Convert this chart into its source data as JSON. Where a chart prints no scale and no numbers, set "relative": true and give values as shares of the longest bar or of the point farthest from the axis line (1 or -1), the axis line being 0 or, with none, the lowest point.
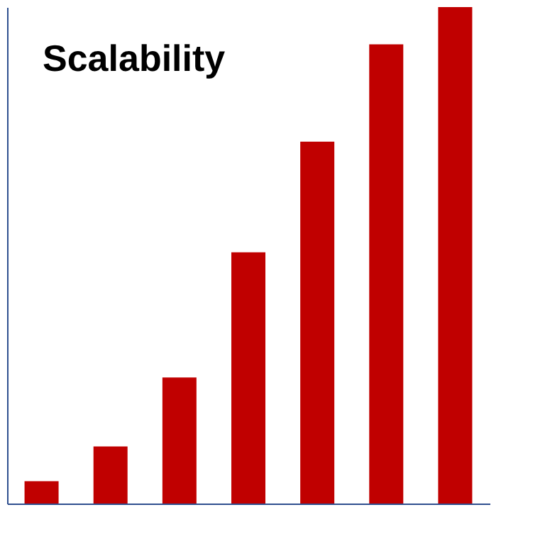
{
  "chart_data": {
    "type": "bar",
    "title": "Scalability",
    "categories": [
      null,
      null,
      null,
      null,
      null,
      null,
      null
    ],
    "values": [
      0.045,
      0.115,
      0.254,
      0.506,
      0.729,
      0.925,
      1
    ],
    "color": "#c00000",
    "relative": true,
    "grid": false
  }
}
